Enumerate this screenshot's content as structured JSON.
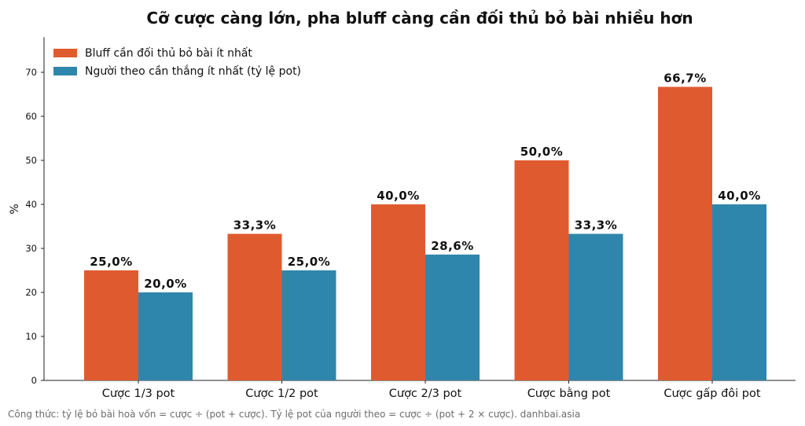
{
  "chart_data": {
    "type": "bar",
    "title": "Cỡ cược càng lớn, pha bluff càng cần đối thủ bỏ bài nhiều hơn",
    "xlabel": "",
    "ylabel": "%",
    "ylim": [
      0,
      78
    ],
    "yticks": [
      0,
      10,
      20,
      30,
      40,
      50,
      60,
      70
    ],
    "categories": [
      "Cược 1/3 pot",
      "Cược 1/2 pot",
      "Cược 2/3 pot",
      "Cược bằng pot",
      "Cược gấp đôi pot"
    ],
    "series": [
      {
        "name": "Bluff cần đối thủ bỏ bài ít nhất",
        "color": "#E05A30",
        "values": [
          25.0,
          33.3,
          40.0,
          50.0,
          66.7
        ],
        "labels": [
          "25,0%",
          "33,3%",
          "40,0%",
          "50,0%",
          "66,7%"
        ]
      },
      {
        "name": "Người theo cần thắng ít nhất (tỷ lệ pot)",
        "color": "#2F86AC",
        "values": [
          20.0,
          25.0,
          28.6,
          33.3,
          40.0
        ],
        "labels": [
          "20,0%",
          "25,0%",
          "28,6%",
          "33,3%",
          "40,0%"
        ]
      }
    ],
    "legend_position": "top-left",
    "grid": false
  },
  "footnote": "Công thức: tỷ lệ bỏ bài hoà vốn = cược ÷ (pot + cược). Tỷ lệ pot của người theo = cược ÷ (pot + 2 × cược). danhbai.asia"
}
